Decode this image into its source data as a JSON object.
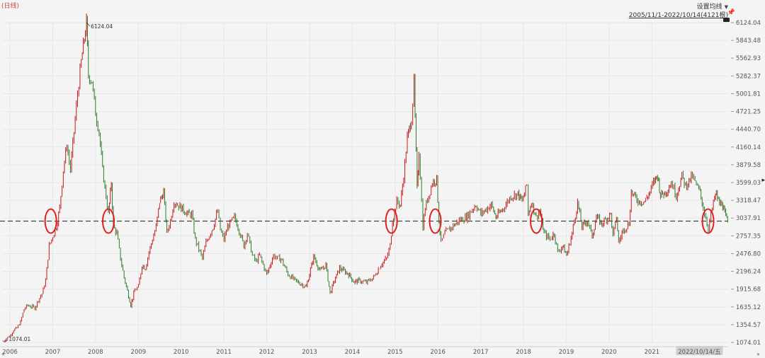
{
  "header": {
    "period_label": "(日线)",
    "settings_label": "设置均线",
    "range_label": "2005/11/1-2022/10/14(4121根)"
  },
  "icons": {
    "settings_dropdown": "triangle-down-icon",
    "pin": "pin-icon",
    "toggle": "toggle-icon",
    "scroll_left": "double-chevron-left-icon",
    "scroll_right": "double-chevron-right-icon",
    "collapse": "chevron-right-icon"
  },
  "colors": {
    "up": "#c21a1a",
    "down": "#2f7a2a",
    "marker": "#e0201c",
    "reference_line": "#444444",
    "grid": "#e6e6e6"
  },
  "chart_data": {
    "type": "line",
    "title": "",
    "subtitle": "",
    "xlabel": "",
    "ylabel": "",
    "grid": true,
    "x_ticks": [
      "2006",
      "2007",
      "2008",
      "2009",
      "2010",
      "2011",
      "2012",
      "2013",
      "2014",
      "2015",
      "2016",
      "2017",
      "2018",
      "2019",
      "2020",
      "2021"
    ],
    "current_date_label": "2022/10/14/五",
    "y_ticks": [
      "6124.04",
      "5843.48",
      "5562.93",
      "5282.37",
      "5001.81",
      "4721.25",
      "4440.70",
      "4160.14",
      "3879.58",
      "3599.03",
      "3318.47",
      "3037.91",
      "2757.35",
      "2476.80",
      "2196.24",
      "1915.68",
      "1635.12",
      "1354.57",
      "1074.01"
    ],
    "ylim": [
      1074.01,
      6124.04
    ],
    "xlim": [
      "2005-11-01",
      "2022-10-14"
    ],
    "annotations": [
      {
        "label": "6124.04",
        "x": "2007-10-16",
        "y": 6124.04
      },
      {
        "label": "1074.01",
        "x": "2005-11-15",
        "y": 1074.01
      }
    ],
    "reference_line": {
      "y": 2990,
      "style": "dashed"
    },
    "markers": [
      {
        "x": "2006-12-15",
        "y": 2990
      },
      {
        "x": "2008-04-20",
        "y": 2990
      },
      {
        "x": "2014-12-01",
        "y": 2990
      },
      {
        "x": "2015-12-10",
        "y": 2990
      },
      {
        "x": "2018-04-20",
        "y": 2990
      },
      {
        "x": "2022-04-25",
        "y": 2990
      }
    ],
    "series": [
      {
        "values": [
          {
            "x": "2005-11-01",
            "y": 1090
          },
          {
            "x": "2005-12-01",
            "y": 1140
          },
          {
            "x": "2006-01-01",
            "y": 1180
          },
          {
            "x": "2006-02-01",
            "y": 1270
          },
          {
            "x": "2006-03-01",
            "y": 1300
          },
          {
            "x": "2006-04-01",
            "y": 1400
          },
          {
            "x": "2006-05-01",
            "y": 1600
          },
          {
            "x": "2006-06-01",
            "y": 1660
          },
          {
            "x": "2006-07-01",
            "y": 1640
          },
          {
            "x": "2006-08-01",
            "y": 1620
          },
          {
            "x": "2006-09-01",
            "y": 1750
          },
          {
            "x": "2006-10-01",
            "y": 1840
          },
          {
            "x": "2006-11-01",
            "y": 2050
          },
          {
            "x": "2006-12-01",
            "y": 2600
          },
          {
            "x": "2007-01-01",
            "y": 2750
          },
          {
            "x": "2007-02-01",
            "y": 2900
          },
          {
            "x": "2007-03-01",
            "y": 3200
          },
          {
            "x": "2007-04-01",
            "y": 3800
          },
          {
            "x": "2007-05-01",
            "y": 4200
          },
          {
            "x": "2007-06-01",
            "y": 3800
          },
          {
            "x": "2007-07-01",
            "y": 4400
          },
          {
            "x": "2007-08-01",
            "y": 5000
          },
          {
            "x": "2007-09-01",
            "y": 5500
          },
          {
            "x": "2007-10-16",
            "y": 6124
          },
          {
            "x": "2007-11-01",
            "y": 5300
          },
          {
            "x": "2007-12-01",
            "y": 5200
          },
          {
            "x": "2008-01-01",
            "y": 4700
          },
          {
            "x": "2008-02-01",
            "y": 4400
          },
          {
            "x": "2008-03-01",
            "y": 3800
          },
          {
            "x": "2008-04-20",
            "y": 3100
          },
          {
            "x": "2008-05-15",
            "y": 3600
          },
          {
            "x": "2008-06-01",
            "y": 2900
          },
          {
            "x": "2008-07-01",
            "y": 2800
          },
          {
            "x": "2008-08-01",
            "y": 2400
          },
          {
            "x": "2008-09-01",
            "y": 2100
          },
          {
            "x": "2008-10-28",
            "y": 1665
          },
          {
            "x": "2008-12-01",
            "y": 1900
          },
          {
            "x": "2009-01-01",
            "y": 1950
          },
          {
            "x": "2009-02-01",
            "y": 2300
          },
          {
            "x": "2009-03-01",
            "y": 2250
          },
          {
            "x": "2009-04-01",
            "y": 2500
          },
          {
            "x": "2009-05-01",
            "y": 2700
          },
          {
            "x": "2009-06-01",
            "y": 2900
          },
          {
            "x": "2009-07-01",
            "y": 3300
          },
          {
            "x": "2009-08-04",
            "y": 3450
          },
          {
            "x": "2009-09-01",
            "y": 2800
          },
          {
            "x": "2009-10-01",
            "y": 3000
          },
          {
            "x": "2009-11-01",
            "y": 3300
          },
          {
            "x": "2009-12-01",
            "y": 3250
          },
          {
            "x": "2010-01-01",
            "y": 3200
          },
          {
            "x": "2010-03-01",
            "y": 3100
          },
          {
            "x": "2010-04-01",
            "y": 3100
          },
          {
            "x": "2010-05-01",
            "y": 2700
          },
          {
            "x": "2010-07-01",
            "y": 2400
          },
          {
            "x": "2010-08-01",
            "y": 2650
          },
          {
            "x": "2010-10-01",
            "y": 2900
          },
          {
            "x": "2010-11-08",
            "y": 3150
          },
          {
            "x": "2010-12-01",
            "y": 2850
          },
          {
            "x": "2011-01-01",
            "y": 2700
          },
          {
            "x": "2011-02-01",
            "y": 2900
          },
          {
            "x": "2011-04-01",
            "y": 3050
          },
          {
            "x": "2011-05-01",
            "y": 2900
          },
          {
            "x": "2011-06-20",
            "y": 2600
          },
          {
            "x": "2011-07-20",
            "y": 2800
          },
          {
            "x": "2011-09-01",
            "y": 2450
          },
          {
            "x": "2011-10-01",
            "y": 2350
          },
          {
            "x": "2011-11-01",
            "y": 2450
          },
          {
            "x": "2012-01-01",
            "y": 2150
          },
          {
            "x": "2012-02-28",
            "y": 2450
          },
          {
            "x": "2012-04-01",
            "y": 2400
          },
          {
            "x": "2012-05-01",
            "y": 2400
          },
          {
            "x": "2012-07-01",
            "y": 2150
          },
          {
            "x": "2012-09-01",
            "y": 2050
          },
          {
            "x": "2012-12-04",
            "y": 1950
          },
          {
            "x": "2013-02-05",
            "y": 2430
          },
          {
            "x": "2013-04-01",
            "y": 2200
          },
          {
            "x": "2013-05-20",
            "y": 2300
          },
          {
            "x": "2013-06-25",
            "y": 1850
          },
          {
            "x": "2013-08-01",
            "y": 2050
          },
          {
            "x": "2013-09-15",
            "y": 2250
          },
          {
            "x": "2013-12-01",
            "y": 2150
          },
          {
            "x": "2014-01-15",
            "y": 2030
          },
          {
            "x": "2014-03-01",
            "y": 2050
          },
          {
            "x": "2014-05-01",
            "y": 2020
          },
          {
            "x": "2014-07-01",
            "y": 2100
          },
          {
            "x": "2014-09-01",
            "y": 2300
          },
          {
            "x": "2014-10-20",
            "y": 2400
          },
          {
            "x": "2014-11-20",
            "y": 2600
          },
          {
            "x": "2014-12-10",
            "y": 2990
          },
          {
            "x": "2015-01-15",
            "y": 3300
          },
          {
            "x": "2015-02-15",
            "y": 3250
          },
          {
            "x": "2015-03-15",
            "y": 3700
          },
          {
            "x": "2015-04-15",
            "y": 4300
          },
          {
            "x": "2015-05-20",
            "y": 4600
          },
          {
            "x": "2015-06-12",
            "y": 5178
          },
          {
            "x": "2015-07-08",
            "y": 3500
          },
          {
            "x": "2015-07-24",
            "y": 4100
          },
          {
            "x": "2015-08-26",
            "y": 2900
          },
          {
            "x": "2015-09-15",
            "y": 3200
          },
          {
            "x": "2015-10-15",
            "y": 3400
          },
          {
            "x": "2015-11-15",
            "y": 3600
          },
          {
            "x": "2015-12-22",
            "y": 3650
          },
          {
            "x": "2016-01-10",
            "y": 3000
          },
          {
            "x": "2016-01-28",
            "y": 2650
          },
          {
            "x": "2016-03-01",
            "y": 2800
          },
          {
            "x": "2016-05-01",
            "y": 2900
          },
          {
            "x": "2016-07-01",
            "y": 3000
          },
          {
            "x": "2016-09-01",
            "y": 3050
          },
          {
            "x": "2016-11-20",
            "y": 3250
          },
          {
            "x": "2017-01-01",
            "y": 3100
          },
          {
            "x": "2017-04-01",
            "y": 3250
          },
          {
            "x": "2017-05-10",
            "y": 3050
          },
          {
            "x": "2017-07-15",
            "y": 3200
          },
          {
            "x": "2017-09-15",
            "y": 3380
          },
          {
            "x": "2017-11-15",
            "y": 3420
          },
          {
            "x": "2017-12-20",
            "y": 3300
          },
          {
            "x": "2018-01-29",
            "y": 3560
          },
          {
            "x": "2018-02-10",
            "y": 3100
          },
          {
            "x": "2018-03-10",
            "y": 3300
          },
          {
            "x": "2018-04-20",
            "y": 3050
          },
          {
            "x": "2018-05-20",
            "y": 3150
          },
          {
            "x": "2018-06-25",
            "y": 2800
          },
          {
            "x": "2018-08-15",
            "y": 2700
          },
          {
            "x": "2018-09-20",
            "y": 2800
          },
          {
            "x": "2018-10-20",
            "y": 2500
          },
          {
            "x": "2018-12-01",
            "y": 2600
          },
          {
            "x": "2019-01-04",
            "y": 2450
          },
          {
            "x": "2019-02-20",
            "y": 2800
          },
          {
            "x": "2019-04-08",
            "y": 3280
          },
          {
            "x": "2019-05-15",
            "y": 2900
          },
          {
            "x": "2019-07-01",
            "y": 3000
          },
          {
            "x": "2019-08-10",
            "y": 2750
          },
          {
            "x": "2019-09-15",
            "y": 3050
          },
          {
            "x": "2019-11-01",
            "y": 2950
          },
          {
            "x": "2019-12-20",
            "y": 3050
          },
          {
            "x": "2020-01-15",
            "y": 3100
          },
          {
            "x": "2020-02-03",
            "y": 2750
          },
          {
            "x": "2020-03-05",
            "y": 3050
          },
          {
            "x": "2020-03-23",
            "y": 2650
          },
          {
            "x": "2020-05-01",
            "y": 2850
          },
          {
            "x": "2020-06-20",
            "y": 2950
          },
          {
            "x": "2020-07-09",
            "y": 3450
          },
          {
            "x": "2020-08-15",
            "y": 3350
          },
          {
            "x": "2020-09-15",
            "y": 3300
          },
          {
            "x": "2020-11-01",
            "y": 3300
          },
          {
            "x": "2020-12-15",
            "y": 3450
          },
          {
            "x": "2021-01-15",
            "y": 3600
          },
          {
            "x": "2021-02-18",
            "y": 3720
          },
          {
            "x": "2021-03-15",
            "y": 3400
          },
          {
            "x": "2021-05-01",
            "y": 3450
          },
          {
            "x": "2021-06-15",
            "y": 3600
          },
          {
            "x": "2021-07-28",
            "y": 3400
          },
          {
            "x": "2021-09-14",
            "y": 3700
          },
          {
            "x": "2021-10-15",
            "y": 3550
          },
          {
            "x": "2021-12-13",
            "y": 3700
          },
          {
            "x": "2022-01-15",
            "y": 3550
          },
          {
            "x": "2022-02-15",
            "y": 3450
          },
          {
            "x": "2022-03-15",
            "y": 3200
          },
          {
            "x": "2022-04-27",
            "y": 2880
          },
          {
            "x": "2022-05-20",
            "y": 3100
          },
          {
            "x": "2022-06-20",
            "y": 3350
          },
          {
            "x": "2022-07-05",
            "y": 3420
          },
          {
            "x": "2022-08-01",
            "y": 3250
          },
          {
            "x": "2022-08-20",
            "y": 3290
          },
          {
            "x": "2022-09-15",
            "y": 3100
          },
          {
            "x": "2022-10-10",
            "y": 2970
          },
          {
            "x": "2022-10-14",
            "y": 3070
          }
        ]
      }
    ]
  }
}
